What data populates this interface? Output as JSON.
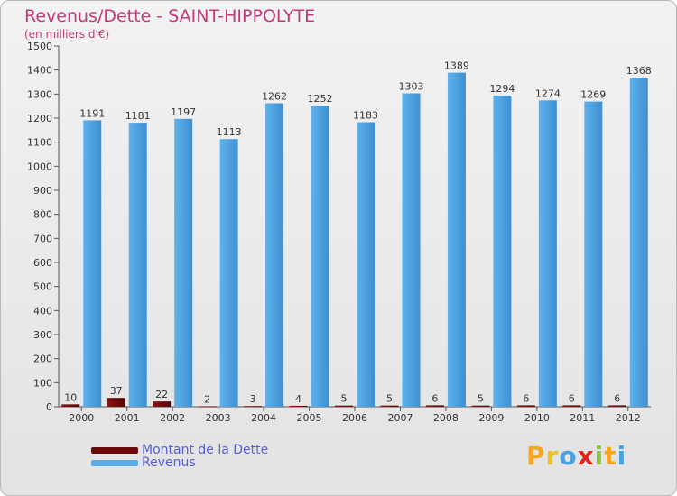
{
  "title": "Revenus/Dette - SAINT-HIPPOLYTE",
  "subtitle": "(en milliers d'€)",
  "colors": {
    "dette": "#6b0a0a",
    "revenus": "#58abe9",
    "revenus_dark": "#3f8fd0",
    "title": "#c13a7a",
    "legend_text": "#5560d6"
  },
  "legend": {
    "dette_label": "Montant de la Dette",
    "revenus_label": "Revenus"
  },
  "logo": {
    "letters": [
      "P",
      "r",
      "o",
      "x",
      "i",
      "t",
      "i"
    ],
    "colors": [
      "#f5a623",
      "#f0c419",
      "#4aa3df",
      "#e2231a",
      "#8cc63f",
      "#f5a623",
      "#4aa3df"
    ]
  },
  "chart_data": {
    "type": "bar",
    "title": "Revenus/Dette - SAINT-HIPPOLYTE",
    "ylabel": "(en milliers d'€)",
    "xlabel": "",
    "ylim": [
      0,
      1500
    ],
    "yticks": [
      0,
      100,
      200,
      300,
      400,
      500,
      600,
      700,
      800,
      900,
      1000,
      1100,
      1200,
      1300,
      1400,
      1500
    ],
    "categories": [
      "2000",
      "2001",
      "2002",
      "2003",
      "2004",
      "2005",
      "2006",
      "2007",
      "2008",
      "2009",
      "2010",
      "2011",
      "2012"
    ],
    "series": [
      {
        "name": "Montant de la Dette",
        "values": [
          10,
          37,
          22,
          2,
          3,
          4,
          5,
          5,
          6,
          5,
          6,
          6,
          6
        ]
      },
      {
        "name": "Revenus",
        "values": [
          1191,
          1181,
          1197,
          1113,
          1262,
          1252,
          1183,
          1303,
          1389,
          1294,
          1274,
          1269,
          1368
        ]
      }
    ],
    "legend_position": "bottom-left",
    "grid": false
  }
}
